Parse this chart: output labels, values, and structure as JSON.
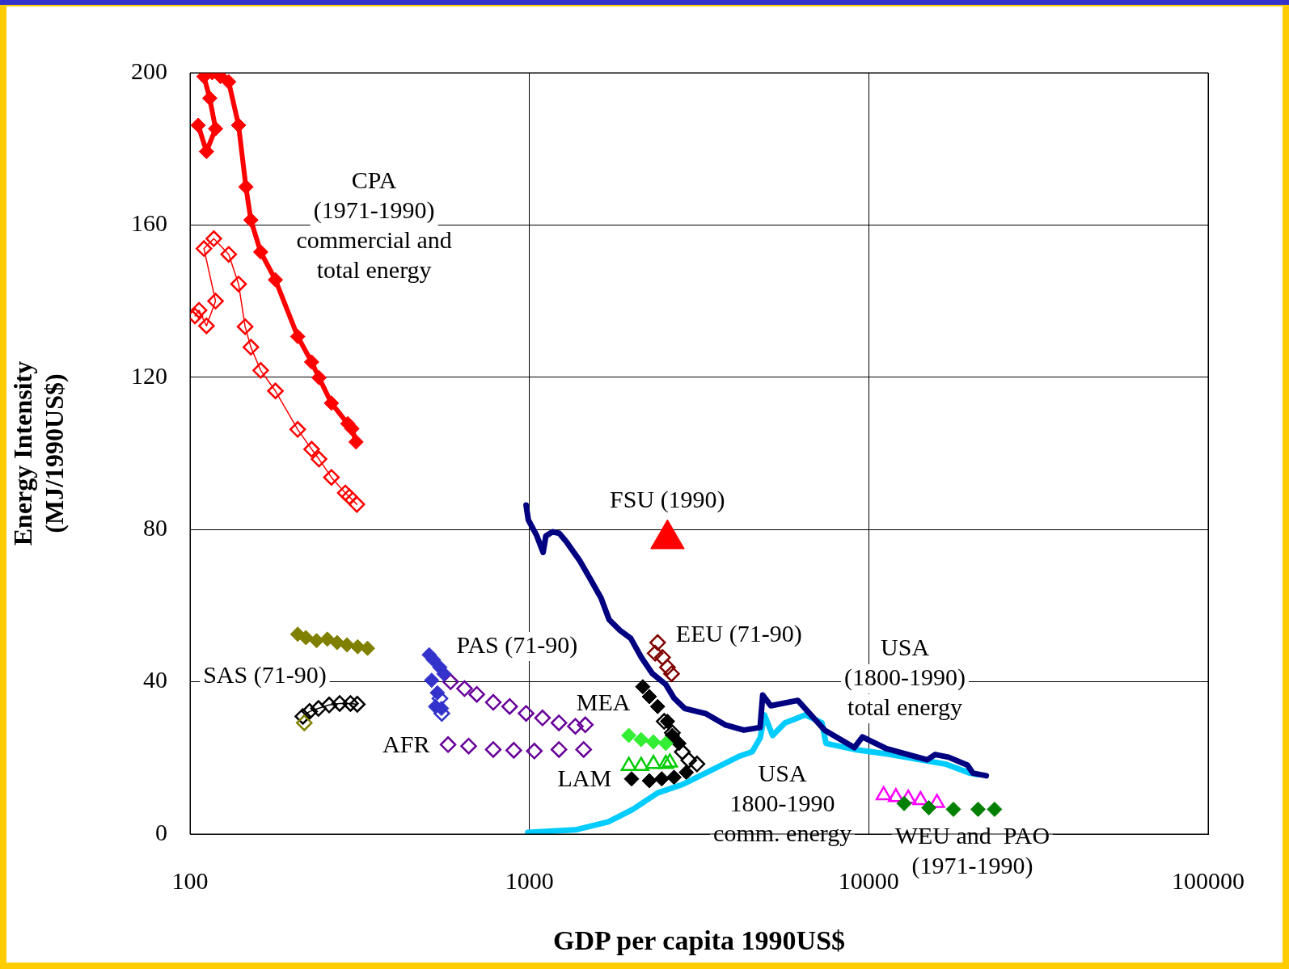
{
  "chart_data": {
    "type": "scatter",
    "xlabel": "GDP per capita 1990US$",
    "ylabel": "Energy Intensity\n(MJ/1990US$)",
    "log": "x",
    "grid": true,
    "legend": false,
    "xlim": [
      100,
      100000
    ],
    "xticks": [
      100,
      1000,
      10000,
      100000
    ],
    "ylim": [
      0,
      200
    ],
    "yticks": [
      0,
      40,
      80,
      120,
      160,
      200
    ],
    "annotations": [
      "CPA\n(1971-1990)\ncommercial and\ntotal energy",
      "FSU (1990)",
      "EEU (71-90)",
      "PAS (71-90)",
      "SAS (71-90)",
      "MEA",
      "AFR",
      "LAM",
      "USA\n1800-1990\ncomm. energy",
      "USA\n(1800-1990)\ntotal energy",
      "WEU and  PAO\n(1971-1990)"
    ],
    "series": [
      {
        "type": "line",
        "marker": "diamond",
        "color": "#ff0000",
        "x": [
          105.7,
          111.8,
          118.9,
          114.3,
          109.9,
          116.2,
          122.9,
          130.0,
          139.0,
          146.1,
          151.1,
          161.5,
          178.5,
          207.6,
          228.2,
          239.9,
          261.0,
          291.6,
          299.9,
          308.4
        ],
        "values": [
          186.2,
          179.3,
          185.3,
          193.3,
          199,
          200,
          199,
          197.6,
          186.2,
          170.0,
          161.3,
          152.9,
          145.6,
          130.7,
          124.0,
          119.9,
          113.2,
          107.8,
          106.5,
          103.0
        ]
      },
      {
        "type": "line",
        "marker": "diamond",
        "color": "#ff0000",
        "x": [
          103.4,
          106.3,
          111.8,
          118.9,
          109.9,
          117.5,
          130.0,
          139.0,
          145.3,
          151.1,
          161.5,
          178.5,
          207.6,
          228.2,
          239.9,
          261.0,
          286.8,
          294.9,
          310.1
        ],
        "values": [
          136.1,
          137.6,
          133.5,
          140.0,
          153.8,
          156.4,
          152.3,
          144.5,
          133.3,
          127.9,
          121.8,
          116.4,
          106.3,
          101.1,
          98.5,
          93.7,
          89.6,
          88.6,
          86.6
        ]
      },
      {
        "type": "scatter",
        "marker": "diamond",
        "color": "#808000",
        "x": [
          207.6,
          219.5,
          236.0,
          253.8,
          271.3,
          290.1,
          311.9,
          333.4
        ],
        "values": [
          52.5,
          51.6,
          50.8,
          51.2,
          50.3,
          49.7,
          49.2,
          48.8
        ]
      },
      {
        "type": "scatter",
        "marker": "diamond",
        "color": "#808000",
        "x": [
          217.1
        ],
        "values": [
          29.2
        ]
      },
      {
        "type": "line",
        "marker": "diamond",
        "color": "#000000",
        "x": [
          215.0,
          225.0,
          239.0,
          257.0,
          276.0,
          297.0,
          311.0
        ],
        "values": [
          30.9,
          32.2,
          33.0,
          33.9,
          34.3,
          34.3,
          34.1
        ]
      },
      {
        "type": "scatter",
        "marker": "diamond",
        "color": "#3333cc",
        "x": [
          506.6,
          521,
          544.6,
          560,
          515.2,
          535.6,
          529,
          550.7
        ],
        "values": [
          47.1,
          45.8,
          43.8,
          42.1,
          40.4,
          37.1,
          33.5,
          33.0
        ]
      },
      {
        "type": "scatter",
        "marker": "diamond",
        "color": "#3333cc",
        "x": [
          552,
          545
        ],
        "values": [
          31.7,
          35.6
        ]
      },
      {
        "type": "scatter",
        "marker": "diamond",
        "color": "#660099",
        "x": [
          585.7,
          643.9,
          699.8,
          782.5,
          874.8,
          977.9,
          1093,
          1222,
          1366,
          1461
        ],
        "values": [
          40.0,
          38.2,
          36.7,
          34.6,
          33.5,
          31.7,
          30.5,
          29.2,
          28.3,
          28.7
        ]
      },
      {
        "type": "scatter",
        "marker": "diamond",
        "color": "#660099",
        "x": [
          575.9,
          662.2,
          782.5,
          899.4,
          1034,
          1222,
          1445
        ],
        "values": [
          23.5,
          23.1,
          22.2,
          22.0,
          21.8,
          22.2,
          22.2
        ]
      },
      {
        "type": "line",
        "marker": "none",
        "color": "#000080",
        "x": [
          977.9,
          992.9,
          1048.6,
          1097.6,
          1118,
          1170,
          1225,
          1282,
          1405,
          1512,
          1626,
          1718,
          1849,
          1989,
          2138,
          2301,
          2522,
          2664,
          2867,
          3318,
          3772,
          4285,
          4784,
          4870,
          5146,
          6177,
          7413,
          9066,
          9581,
          11290,
          14860,
          15690,
          17180,
          19540,
          20270,
          22190
        ],
        "values": [
          86.4,
          82.5,
          78.6,
          74.0,
          78.3,
          79.4,
          79.0,
          76.9,
          71.9,
          67.0,
          62.0,
          56.3,
          53.5,
          51.4,
          46.4,
          42.2,
          39.3,
          35.8,
          33.0,
          31.6,
          28.7,
          27.3,
          28.0,
          36.5,
          33.7,
          35.1,
          27.3,
          22.7,
          25.5,
          22.4,
          19.5,
          20.9,
          20.2,
          18.1,
          16.0,
          15.3
        ]
      },
      {
        "type": "line",
        "marker": "none",
        "color": "#00ccff",
        "x": [
          989,
          1366,
          1708,
          2019,
          2387,
          2821,
          3526,
          4169,
          4532,
          4790,
          4926,
          5208,
          5662,
          6511,
          7278,
          7482,
          9095,
          11370,
          14860,
          16800,
          19860,
          20990
        ],
        "values": [
          0.4,
          1.1,
          3.2,
          6.5,
          10.8,
          13.0,
          17.3,
          20.5,
          21.6,
          25.3,
          31.3,
          25.9,
          29.2,
          31.3,
          29.2,
          23.8,
          22.2,
          21.0,
          19.2,
          18.4,
          16.0,
          15.6
        ]
      },
      {
        "type": "scatter",
        "marker": "triangle",
        "color": "#ff0000",
        "x": [
          2552
        ],
        "values": [
          77.5
        ]
      },
      {
        "type": "scatter",
        "marker": "diamond",
        "color": "#800000",
        "x": [
          2387,
          2347,
          2468,
          2552,
          2624
        ],
        "values": [
          50.3,
          47.5,
          46.4,
          43.8,
          42.1
        ]
      },
      {
        "type": "scatter",
        "marker": "diamond",
        "color": "#33ee33",
        "x": [
          1963,
          2134,
          2320,
          2523
        ],
        "values": [
          25.9,
          24.8,
          24.2,
          23.8
        ]
      },
      {
        "type": "scatter",
        "marker": "triangle",
        "color": "#00cc00",
        "x": [
          1963,
          2134,
          2320,
          2523,
          2594
        ],
        "values": [
          17.9,
          17.9,
          18.4,
          18.4,
          18.8
        ]
      },
      {
        "type": "scatter",
        "marker": "diamond",
        "color": "#000000",
        "x": [
          2158,
          2257,
          2387,
          2552,
          2638,
          2759,
          2000,
          2257,
          2454,
          2668,
          2900
        ],
        "values": [
          38.7,
          36.1,
          33.5,
          29.6,
          25.9,
          23.8,
          14.5,
          14.0,
          14.5,
          14.9,
          16.2
        ]
      },
      {
        "type": "scatter",
        "marker": "diamond",
        "color": "#000000",
        "x": [
          2495,
          2638,
          2821,
          2949,
          3117
        ],
        "values": [
          29.6,
          26.6,
          21.6,
          19.4,
          18.4
        ]
      },
      {
        "type": "scatter",
        "marker": "diamond",
        "color": "#008000",
        "x": [
          12710,
          15030,
          17760,
          20990,
          23480
        ],
        "values": [
          8.0,
          6.9,
          6.5,
          6.5,
          6.5
        ]
      },
      {
        "type": "scatter",
        "marker": "triangle",
        "color": "#ff00ff",
        "x": [
          11060,
          12020,
          13070,
          14210,
          15880
        ],
        "values": [
          10.2,
          9.7,
          9.3,
          8.9,
          8.2
        ]
      }
    ]
  }
}
